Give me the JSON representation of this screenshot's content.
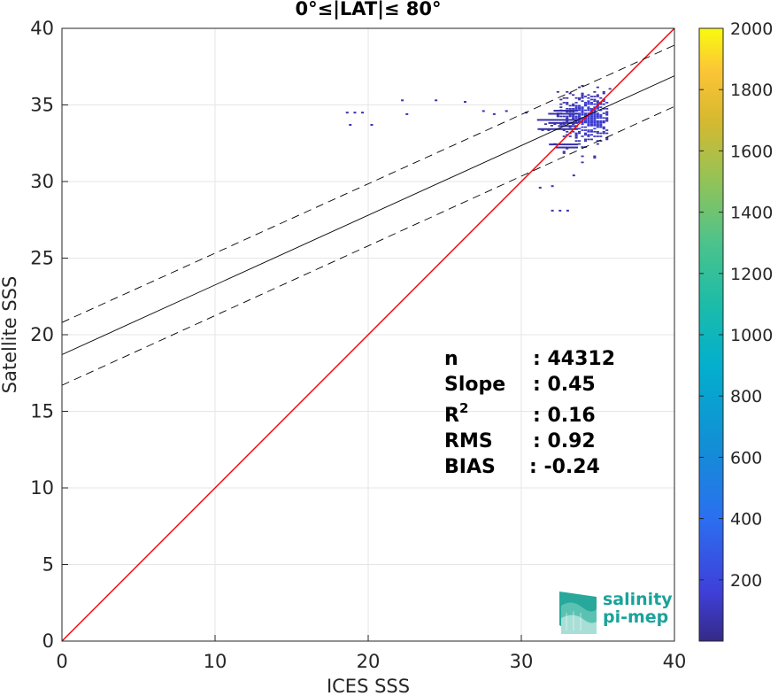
{
  "chart_data": {
    "type": "scatter",
    "title": "0°≤|LAT|≤ 80°",
    "xlabel": "ICES SSS",
    "ylabel": "Satellite SSS",
    "xlim": [
      0,
      40
    ],
    "ylim": [
      0,
      40
    ],
    "xticks": [
      "0",
      "10",
      "20",
      "30",
      "40"
    ],
    "yticks": [
      "0",
      "5",
      "10",
      "15",
      "20",
      "25",
      "30",
      "35",
      "40"
    ],
    "grid": true,
    "lines": [
      {
        "name": "one-to-one",
        "style": "solid",
        "color": "#ff0000",
        "x": [
          0,
          40
        ],
        "y": [
          0,
          40
        ]
      },
      {
        "name": "regression",
        "style": "solid",
        "color": "#000000",
        "x": [
          0,
          40
        ],
        "y": [
          18.7,
          36.9
        ]
      },
      {
        "name": "upper-bound",
        "style": "dashed",
        "color": "#000000",
        "x": [
          0,
          40
        ],
        "y": [
          20.8,
          38.9
        ]
      },
      {
        "name": "lower-bound",
        "style": "dashed",
        "color": "#000000",
        "x": [
          0,
          40
        ],
        "y": [
          16.7,
          34.9
        ]
      }
    ],
    "outliers": [
      {
        "x": 18.6,
        "y": 34.5
      },
      {
        "x": 19.1,
        "y": 34.5
      },
      {
        "x": 19.6,
        "y": 34.5
      },
      {
        "x": 18.8,
        "y": 33.7
      },
      {
        "x": 20.2,
        "y": 33.7
      },
      {
        "x": 22.2,
        "y": 35.3
      },
      {
        "x": 22.5,
        "y": 34.4
      },
      {
        "x": 24.4,
        "y": 35.3
      },
      {
        "x": 26.3,
        "y": 35.2
      },
      {
        "x": 27.5,
        "y": 34.6
      },
      {
        "x": 28.2,
        "y": 34.4
      },
      {
        "x": 29.0,
        "y": 34.6
      },
      {
        "x": 30.3,
        "y": 34.5
      },
      {
        "x": 32.0,
        "y": 28.1
      },
      {
        "x": 32.5,
        "y": 28.1
      },
      {
        "x": 33.0,
        "y": 28.1
      },
      {
        "x": 31.2,
        "y": 29.6
      },
      {
        "x": 32.0,
        "y": 29.7
      },
      {
        "x": 33.4,
        "y": 30.4
      }
    ],
    "density": {
      "x_range": [
        30.5,
        35.8
      ],
      "y_range": [
        29.4,
        36.3
      ],
      "core": {
        "x": 34.3,
        "y": 34.2
      }
    },
    "colorbar": {
      "min": 0,
      "max": 2000,
      "ticks": [
        "200",
        "400",
        "600",
        "800",
        "1000",
        "1200",
        "1400",
        "1600",
        "1800",
        "2000"
      ],
      "colormap": "parula"
    },
    "stats": [
      {
        "label": "n",
        "value": ": 44312"
      },
      {
        "label": "Slope",
        "value": ": 0.45"
      },
      {
        "label": "R",
        "sup": "2",
        "value": ": 0.16"
      },
      {
        "label": "RMS",
        "value": ": 0.92"
      },
      {
        "label": "BIAS",
        "value": ": -0.24"
      }
    ]
  },
  "logo": {
    "line1": "salinity",
    "line2": "pi-mep"
  }
}
